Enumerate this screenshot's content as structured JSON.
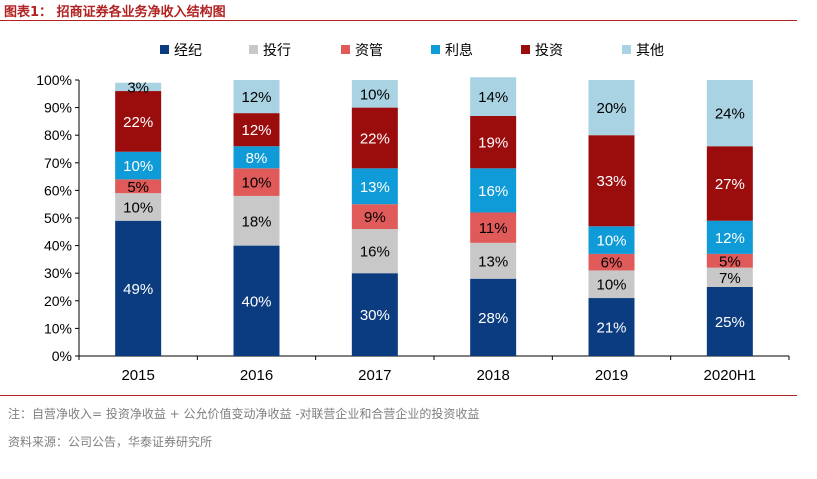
{
  "header": {
    "title": "图表1：  招商证券各业务净收入结构图"
  },
  "footer": {
    "note": "注：自营净收入= 投资净收益 + 公允价值变动净收益 -对联营企业和合营企业的投资收益",
    "source": "资料来源：公司公告，华泰证券研究所"
  },
  "colors": {
    "经纪": "#0b3c80",
    "投行": "#c8c8c8",
    "资管": "#e05a5a",
    "利息": "#0f9bd7",
    "投资": "#9b0d0d",
    "其他": "#a9d3e3"
  },
  "chart_data": {
    "type": "bar",
    "stacked": true,
    "categories": [
      "2015",
      "2016",
      "2017",
      "2018",
      "2019",
      "2020H1"
    ],
    "series": [
      {
        "name": "经纪",
        "values": [
          49,
          40,
          30,
          28,
          21,
          25
        ],
        "labels": [
          "49%",
          "40%",
          "30%",
          "28%",
          "21%",
          "25%"
        ]
      },
      {
        "name": "投行",
        "values": [
          10,
          18,
          16,
          13,
          10,
          7
        ],
        "labels": [
          "10%",
          "18%",
          "16%",
          "13%",
          "10%",
          "7%"
        ]
      },
      {
        "name": "资管",
        "values": [
          5,
          10,
          9,
          11,
          6,
          5
        ],
        "labels": [
          "5%",
          "10%",
          "9%",
          "11%",
          "6%",
          "5%"
        ]
      },
      {
        "name": "利息",
        "values": [
          10,
          8,
          13,
          16,
          10,
          12
        ],
        "labels": [
          "10%",
          "8%",
          "13%",
          "16%",
          "10%",
          "12%"
        ]
      },
      {
        "name": "投资",
        "values": [
          22,
          12,
          22,
          19,
          33,
          27
        ],
        "labels": [
          "22%",
          "12%",
          "22%",
          "19%",
          "33%",
          "27%"
        ]
      },
      {
        "name": "其他",
        "values": [
          3,
          12,
          10,
          14,
          20,
          24
        ],
        "labels": [
          "3%",
          "12%",
          "10%",
          "14%",
          "20%",
          "24%"
        ]
      }
    ],
    "yticks": [
      "0%",
      "10%",
      "20%",
      "30%",
      "40%",
      "50%",
      "60%",
      "70%",
      "80%",
      "90%",
      "100%"
    ],
    "ylim": [
      0,
      100
    ],
    "legend_position": "top",
    "grid": false
  }
}
